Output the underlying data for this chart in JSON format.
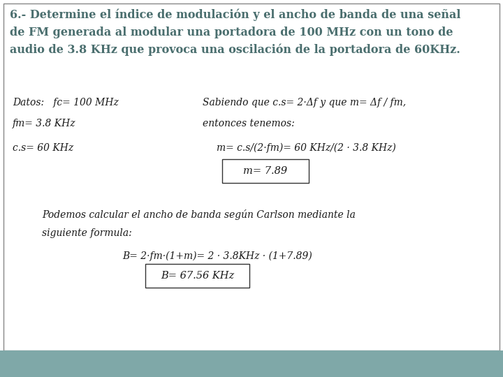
{
  "title_text": "6.- Determine el índice de modulación y el ancho de banda de una señal\nde FM generada al modular una portadora de 100 MHz con un tono de\naudio de 3.8 KHz que provoca una oscilación de la portadora de 60KHz.",
  "bg_white": "#ffffff",
  "bg_teal": "#7fa8a8",
  "border_color": "#888888",
  "datos_label": "Datos:   fc= 100 MHz",
  "dato2": "fm= 3.8 KHz",
  "dato3": "c.s= 60 KHz",
  "sabiendo_line1": "Sabiendo que c.s= 2·Δf y que m= Δf / fm,",
  "sabiendo_line2": "entonces tenemos:",
  "formula_m": "m= c.s/(2·fm)= 60 KHz/(2 · 3.8 KHz)",
  "result_m": "m= 7.89",
  "podemos_line1": "Podemos calcular el ancho de banda según Carlson mediante la",
  "podemos_line2": "siguiente formula:",
  "formula_B": "B= 2·fm·(1+m)= 2 · 3.8KHz · (1+7.89)",
  "result_B": "B= 67.56 KHz",
  "font_family": "serif",
  "title_color": "#4a6e6e",
  "text_color": "#1a1a1a"
}
